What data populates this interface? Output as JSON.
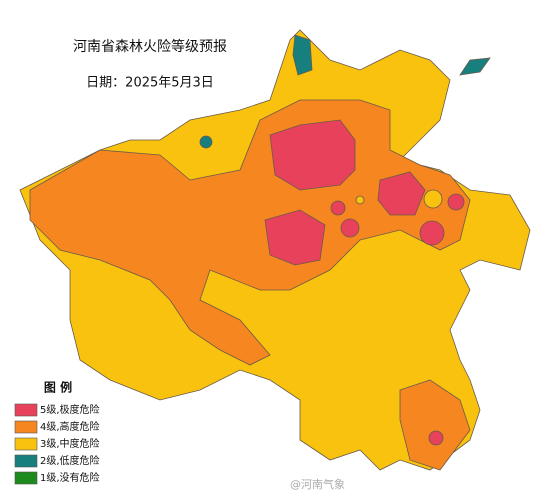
{
  "header": {
    "title": "河南省森林火险等级预报",
    "date": "日期：2025年5月3日"
  },
  "legend": {
    "title": "图 例",
    "items": [
      {
        "label": "5级,极度危险",
        "color": "#e8415b"
      },
      {
        "label": "4级,高度危险",
        "color": "#f6861f"
      },
      {
        "label": "3级,中度危险",
        "color": "#f8c20e"
      },
      {
        "label": "2级,低度危险",
        "color": "#17807e"
      },
      {
        "label": "1级,没有危险",
        "color": "#1c8a1c"
      }
    ]
  },
  "watermark": "@河南气象"
}
